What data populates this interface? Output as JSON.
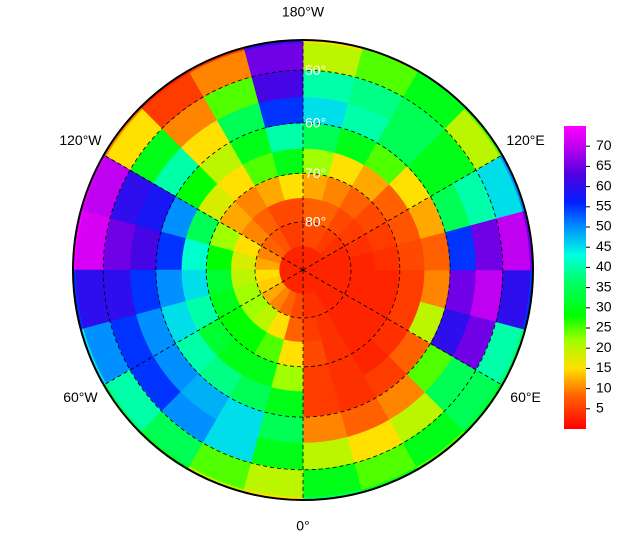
{
  "chart_data": {
    "type": "polar-grid-map",
    "lon_labels": [
      {
        "value": 180,
        "label": "180°W"
      },
      {
        "value": 120,
        "label": "120°E"
      },
      {
        "value": 60,
        "label": "60°E"
      },
      {
        "value": 0,
        "label": "0°"
      },
      {
        "value": -60,
        "label": "60°W"
      },
      {
        "value": -120,
        "label": "120°W"
      }
    ],
    "lat_labels": [
      {
        "value": 50,
        "label": "50°"
      },
      {
        "value": 60,
        "label": "60°"
      },
      {
        "value": 70,
        "label": "70°"
      },
      {
        "value": 80,
        "label": "80°"
      }
    ],
    "lat_edges": [
      90,
      85,
      80,
      75,
      70,
      65,
      60,
      55,
      50,
      45,
      40
    ],
    "lon_edges": [
      0,
      15,
      30,
      45,
      60,
      75,
      90,
      105,
      120,
      135,
      150,
      165,
      180,
      195,
      210,
      225,
      240,
      255,
      270,
      285,
      300,
      315,
      330,
      345,
      360
    ],
    "grid": [
      [
        3,
        3,
        3,
        3,
        3,
        3,
        3,
        3,
        3,
        3,
        3,
        3,
        3,
        3,
        3,
        3,
        3,
        3,
        3,
        3,
        3,
        3,
        3,
        3
      ],
      [
        4,
        4,
        3,
        3,
        3,
        3,
        3,
        3,
        4,
        5,
        6,
        6,
        5,
        5,
        7,
        8,
        10,
        12,
        15,
        14,
        12,
        10,
        8,
        6
      ],
      [
        5,
        4,
        3,
        3,
        3,
        3,
        3,
        4,
        5,
        6,
        8,
        8,
        6,
        6,
        8,
        10,
        15,
        18,
        20,
        22,
        22,
        20,
        15,
        8
      ],
      [
        6,
        4,
        3,
        3,
        3,
        3,
        4,
        5,
        6,
        8,
        10,
        12,
        15,
        12,
        10,
        12,
        22,
        28,
        32,
        30,
        28,
        28,
        25,
        15
      ],
      [
        5,
        4,
        3,
        4,
        5,
        5,
        6,
        7,
        8,
        12,
        15,
        22,
        30,
        25,
        15,
        18,
        35,
        42,
        45,
        40,
        32,
        30,
        30,
        22
      ],
      [
        5,
        4,
        5,
        8,
        20,
        10,
        8,
        12,
        15,
        25,
        30,
        35,
        40,
        30,
        20,
        28,
        50,
        55,
        50,
        45,
        40,
        38,
        35,
        30
      ],
      [
        10,
        8,
        10,
        25,
        60,
        65,
        55,
        35,
        30,
        35,
        40,
        45,
        55,
        35,
        15,
        40,
        58,
        62,
        55,
        50,
        50,
        48,
        45,
        35
      ],
      [
        20,
        15,
        20,
        35,
        65,
        70,
        65,
        40,
        30,
        35,
        38,
        40,
        62,
        25,
        10,
        30,
        60,
        65,
        60,
        55,
        55,
        50,
        45,
        30
      ],
      [
        30,
        25,
        30,
        35,
        40,
        60,
        70,
        45,
        20,
        30,
        25,
        20,
        65,
        10,
        5,
        15,
        70,
        72,
        60,
        50,
        40,
        35,
        25,
        20
      ],
      [
        35,
        30,
        25,
        30,
        35,
        55,
        65,
        50,
        25,
        30,
        25,
        15,
        60,
        5,
        3,
        10,
        72,
        74,
        55,
        45,
        35,
        30,
        20,
        15
      ]
    ],
    "colorbar_lim": [
      0,
      75
    ],
    "colorbar_ticks": [
      5,
      10,
      15,
      20,
      25,
      30,
      35,
      40,
      45,
      50,
      55,
      60,
      65,
      70
    ],
    "colormap": [
      [
        0,
        "#ff0000"
      ],
      [
        8,
        "#ff6000"
      ],
      [
        15,
        "#ffe000"
      ],
      [
        22,
        "#a0ff00"
      ],
      [
        28,
        "#00ff00"
      ],
      [
        36,
        "#00ff60"
      ],
      [
        43,
        "#00ffe0"
      ],
      [
        50,
        "#0090ff"
      ],
      [
        56,
        "#0020ff"
      ],
      [
        63,
        "#5000e0"
      ],
      [
        70,
        "#c000f0"
      ],
      [
        75,
        "#ff00ff"
      ]
    ]
  }
}
